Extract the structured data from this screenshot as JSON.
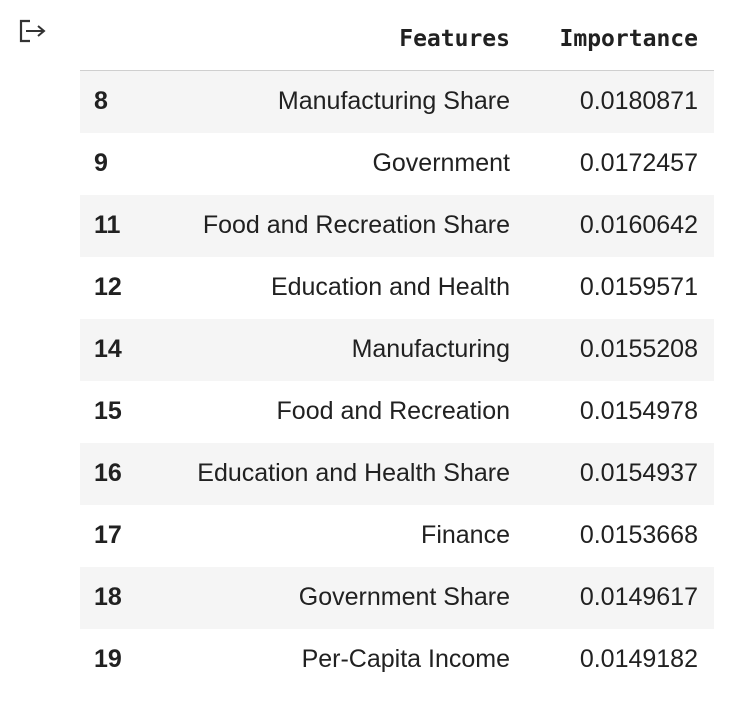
{
  "output_icon": "output-arrow-icon",
  "table": {
    "columns": [
      "Features",
      "Importance"
    ],
    "rows": [
      {
        "index": "8",
        "feature": "Manufacturing Share",
        "importance": "0.0180871"
      },
      {
        "index": "9",
        "feature": "Government",
        "importance": "0.0172457"
      },
      {
        "index": "11",
        "feature": "Food and Recreation Share",
        "importance": "0.0160642"
      },
      {
        "index": "12",
        "feature": "Education and Health",
        "importance": "0.0159571"
      },
      {
        "index": "14",
        "feature": "Manufacturing",
        "importance": "0.0155208"
      },
      {
        "index": "15",
        "feature": "Food and Recreation",
        "importance": "0.0154978"
      },
      {
        "index": "16",
        "feature": "Education and Health Share",
        "importance": "0.0154937"
      },
      {
        "index": "17",
        "feature": "Finance",
        "importance": "0.0153668"
      },
      {
        "index": "18",
        "feature": "Government Share",
        "importance": "0.0149617"
      },
      {
        "index": "19",
        "feature": "Per-Capita Income",
        "importance": "0.0149182"
      }
    ]
  }
}
